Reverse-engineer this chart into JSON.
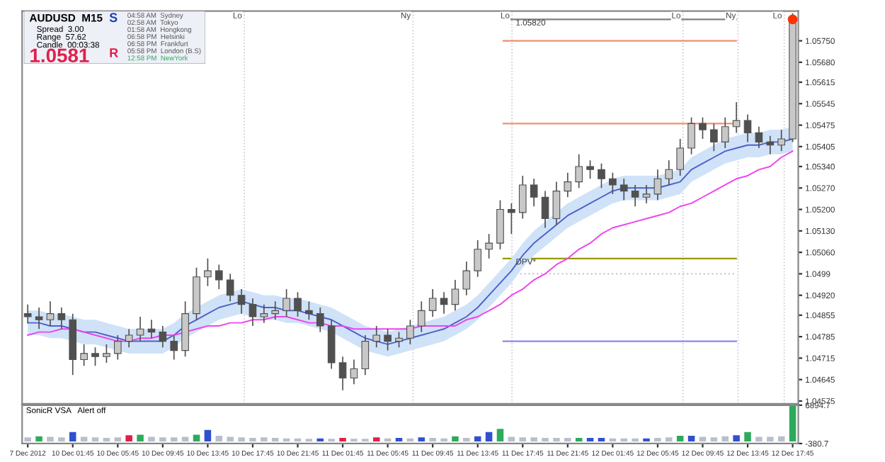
{
  "chart_data": [
    {
      "type": "candlestick",
      "color": "#505050",
      "categories": [
        "7 Dec 2012",
        null,
        null,
        null,
        "10 Dec 01:45",
        null,
        null,
        null,
        "10 Dec 05:45",
        null,
        null,
        null,
        "10 Dec 09:45",
        null,
        null,
        null,
        "10 Dec 13:45",
        null,
        null,
        null,
        "10 Dec 17:45",
        null,
        null,
        null,
        "10 Dec 21:45",
        null,
        null,
        null,
        "11 Dec 01:45",
        null,
        null,
        null,
        "11 Dec 05:45",
        null,
        null,
        null,
        "11 Dec 09:45",
        null,
        null,
        null,
        "11 Dec 13:45",
        null,
        null,
        null,
        "11 Dec 17:45",
        null,
        null,
        null,
        "11 Dec 21:45",
        null,
        null,
        null,
        "12 Dec 01:45",
        null,
        null,
        null,
        "12 Dec 05:45",
        null,
        null,
        null,
        "12 Dec 09:45",
        null,
        null,
        null,
        "12 Dec 13:45",
        null,
        null,
        null,
        "12 Dec 17:45"
      ],
      "ohlc": [
        [
          1.0486,
          1.0489,
          1.0483,
          1.0485
        ],
        [
          1.0485,
          1.0488,
          1.0481,
          1.0484
        ],
        [
          1.0484,
          1.049,
          1.0482,
          1.0486
        ],
        [
          1.0486,
          1.0488,
          1.0481,
          1.0484
        ],
        [
          1.0484,
          1.0486,
          1.0466,
          1.0471
        ],
        [
          1.0471,
          1.0476,
          1.0469,
          1.0473
        ],
        [
          1.0473,
          1.0475,
          1.0469,
          1.0472
        ],
        [
          1.0472,
          1.0476,
          1.047,
          1.0473
        ],
        [
          1.0473,
          1.0479,
          1.0471,
          1.0477
        ],
        [
          1.0477,
          1.0481,
          1.0475,
          1.0479
        ],
        [
          1.0479,
          1.0485,
          1.0477,
          1.0481
        ],
        [
          1.0481,
          1.0484,
          1.0478,
          1.048
        ],
        [
          1.048,
          1.0482,
          1.0475,
          1.0477
        ],
        [
          1.0477,
          1.0479,
          1.0471,
          1.0474
        ],
        [
          1.0474,
          1.049,
          1.0472,
          1.0486
        ],
        [
          1.0486,
          1.0501,
          1.0484,
          1.0498
        ],
        [
          1.0498,
          1.0504,
          1.0495,
          1.05
        ],
        [
          1.05,
          1.0502,
          1.0494,
          1.0497
        ],
        [
          1.0497,
          1.0499,
          1.049,
          1.0492
        ],
        [
          1.0492,
          1.0494,
          1.0486,
          1.0489
        ],
        [
          1.0489,
          1.0491,
          1.0482,
          1.0485
        ],
        [
          1.0485,
          1.0489,
          1.0483,
          1.0486
        ],
        [
          1.0486,
          1.049,
          1.0484,
          1.0487
        ],
        [
          1.0487,
          1.0494,
          1.0485,
          1.0491
        ],
        [
          1.0491,
          1.0493,
          1.0485,
          1.0487
        ],
        [
          1.0487,
          1.049,
          1.0484,
          1.0486
        ],
        [
          1.0486,
          1.0488,
          1.048,
          1.0482
        ],
        [
          1.0482,
          1.0484,
          1.0468,
          1.047
        ],
        [
          1.047,
          1.0472,
          1.0461,
          1.0465
        ],
        [
          1.0465,
          1.0471,
          1.0463,
          1.0468
        ],
        [
          1.0468,
          1.0479,
          1.0466,
          1.0477
        ],
        [
          1.0477,
          1.0482,
          1.0475,
          1.0479
        ],
        [
          1.0479,
          1.0481,
          1.0474,
          1.0477
        ],
        [
          1.0477,
          1.048,
          1.0475,
          1.0478
        ],
        [
          1.0478,
          1.0484,
          1.0476,
          1.0482
        ],
        [
          1.0482,
          1.049,
          1.048,
          1.0487
        ],
        [
          1.0487,
          1.0494,
          1.0485,
          1.0491
        ],
        [
          1.0491,
          1.0493,
          1.0486,
          1.0489
        ],
        [
          1.0489,
          1.0497,
          1.0487,
          1.0494
        ],
        [
          1.0494,
          1.0503,
          1.0492,
          1.05
        ],
        [
          1.05,
          1.051,
          1.0498,
          1.0507
        ],
        [
          1.0507,
          1.0512,
          1.0504,
          1.0509
        ],
        [
          1.0509,
          1.0523,
          1.0507,
          1.052
        ],
        [
          1.052,
          1.0522,
          1.0512,
          1.0519
        ],
        [
          1.0519,
          1.0531,
          1.0517,
          1.0528
        ],
        [
          1.0528,
          1.053,
          1.0521,
          1.0524
        ],
        [
          1.0524,
          1.0526,
          1.0514,
          1.0517
        ],
        [
          1.0517,
          1.0529,
          1.0515,
          1.0526
        ],
        [
          1.0526,
          1.0532,
          1.0524,
          1.0529
        ],
        [
          1.0529,
          1.0538,
          1.0527,
          1.0534
        ],
        [
          1.0534,
          1.0536,
          1.053,
          1.0533
        ],
        [
          1.0533,
          1.0535,
          1.0527,
          1.053
        ],
        [
          1.053,
          1.0532,
          1.0525,
          1.0528
        ],
        [
          1.0528,
          1.053,
          1.0523,
          1.0526
        ],
        [
          1.0526,
          1.0528,
          1.0521,
          1.0524
        ],
        [
          1.0524,
          1.0528,
          1.0522,
          1.0525
        ],
        [
          1.0525,
          1.0533,
          1.0523,
          1.053
        ],
        [
          1.053,
          1.0536,
          1.0528,
          1.0533
        ],
        [
          1.0533,
          1.0543,
          1.0531,
          1.054
        ],
        [
          1.054,
          1.055,
          1.0538,
          1.0548
        ],
        [
          1.0548,
          1.055,
          1.0543,
          1.0546
        ],
        [
          1.0546,
          1.0548,
          1.0539,
          1.0542
        ],
        [
          1.0542,
          1.055,
          1.054,
          1.0547
        ],
        [
          1.0547,
          1.0555,
          1.0545,
          1.0549
        ],
        [
          1.0549,
          1.0551,
          1.0542,
          1.0545
        ],
        [
          1.0545,
          1.0547,
          1.054,
          1.0542
        ],
        [
          1.0542,
          1.0544,
          1.0538,
          1.0541
        ],
        [
          1.0541,
          1.0546,
          1.0539,
          1.0543
        ],
        [
          1.0543,
          1.0584,
          1.0542,
          1.0582
        ]
      ],
      "series": [
        {
          "type": "line",
          "color": "#5060c8",
          "values": [
            1.0483,
            1.0483,
            1.0482,
            1.0482,
            1.0481,
            1.048,
            1.048,
            1.0479,
            1.0478,
            1.0477,
            1.0477,
            1.0477,
            1.0477,
            1.0479,
            1.0482,
            1.0484,
            1.0486,
            1.0488,
            1.0489,
            1.049,
            1.0489,
            1.0488,
            1.0488,
            1.0487,
            1.0487,
            1.0486,
            1.0485,
            1.0484,
            1.0482,
            1.048,
            1.0478,
            1.0477,
            1.0476,
            1.0477,
            1.0478,
            1.0479,
            1.048,
            1.0481,
            1.0483,
            1.0485,
            1.0488,
            1.0492,
            1.0496,
            1.05,
            1.0505,
            1.0509,
            1.0512,
            1.0515,
            1.0518,
            1.052,
            1.0522,
            1.0524,
            1.0526,
            1.0527,
            1.0527,
            1.0527,
            1.0527,
            1.0528,
            1.0529,
            1.0533,
            1.0535,
            1.0537,
            1.0539,
            1.054,
            1.0541,
            1.0541,
            1.0542,
            1.0542,
            1.0543
          ],
          "lower": [
            1.0479,
            1.0479,
            1.0478,
            1.0478,
            1.0477,
            1.0476,
            1.0476,
            1.0475,
            1.0474,
            1.0473,
            1.0473,
            1.0473,
            1.0473,
            1.0475,
            1.0478,
            1.048,
            1.0482,
            1.0484,
            1.0485,
            1.0486,
            1.0485,
            1.0484,
            1.0484,
            1.0483,
            1.0483,
            1.0482,
            1.0481,
            1.048,
            1.0478,
            1.0476,
            1.0474,
            1.0473,
            1.0472,
            1.0473,
            1.0474,
            1.0475,
            1.0476,
            1.0477,
            1.0479,
            1.0481,
            1.0484,
            1.0488,
            1.0492,
            1.0496,
            1.0501,
            1.0505,
            1.0508,
            1.0511,
            1.0514,
            1.0516,
            1.0518,
            1.052,
            1.0522,
            1.0523,
            1.0523,
            1.0523,
            1.0523,
            1.0524,
            1.0525,
            1.0529,
            1.0531,
            1.0533,
            1.0535,
            1.0536,
            1.0537,
            1.0537,
            1.0538,
            1.0538,
            1.0539
          ],
          "upper": [
            1.0487,
            1.0487,
            1.0486,
            1.0486,
            1.0485,
            1.0484,
            1.0484,
            1.0483,
            1.0482,
            1.0481,
            1.0481,
            1.0481,
            1.0481,
            1.0483,
            1.0486,
            1.0488,
            1.049,
            1.0492,
            1.0493,
            1.0494,
            1.0493,
            1.0492,
            1.0492,
            1.0491,
            1.0491,
            1.049,
            1.0489,
            1.0488,
            1.0486,
            1.0484,
            1.0482,
            1.0481,
            1.048,
            1.0481,
            1.0482,
            1.0483,
            1.0484,
            1.0485,
            1.0487,
            1.0489,
            1.0492,
            1.0496,
            1.05,
            1.0504,
            1.0509,
            1.0513,
            1.0516,
            1.0519,
            1.0522,
            1.0524,
            1.0526,
            1.0528,
            1.053,
            1.0531,
            1.0531,
            1.0531,
            1.0531,
            1.0532,
            1.0533,
            1.0537,
            1.0539,
            1.0541,
            1.0543,
            1.0544,
            1.0545,
            1.0545,
            1.0546,
            1.0546,
            1.0547
          ]
        },
        {
          "type": "line",
          "color": "#ee44ee",
          "values": [
            1.0479,
            1.048,
            1.048,
            1.0481,
            1.0481,
            1.048,
            1.0479,
            1.0478,
            1.0477,
            1.0477,
            1.0478,
            1.0478,
            1.0479,
            1.0479,
            1.048,
            1.0481,
            1.0482,
            1.0482,
            1.0483,
            1.0483,
            1.0484,
            1.0484,
            1.0485,
            1.0485,
            1.0484,
            1.0483,
            1.0483,
            1.0482,
            1.0482,
            1.0481,
            1.0481,
            1.0481,
            1.0481,
            1.0481,
            1.0481,
            1.0482,
            1.0482,
            1.0482,
            1.0482,
            1.0484,
            1.0485,
            1.0487,
            1.0489,
            1.0492,
            1.0494,
            1.0497,
            1.0499,
            1.0502,
            1.0504,
            1.0507,
            1.0509,
            1.0512,
            1.0514,
            1.0515,
            1.0516,
            1.0517,
            1.0518,
            1.0519,
            1.0521,
            1.0522,
            1.0524,
            1.0526,
            1.0528,
            1.053,
            1.0531,
            1.0533,
            1.0534,
            1.0537,
            1.0539
          ]
        },
        {
          "type": "scatter",
          "marker": "circle",
          "color": "#ff3300",
          "x": [
            "12 Dec 17:45"
          ],
          "values": [
            1.0582
          ]
        }
      ],
      "ylim": [
        1.04566,
        1.05847
      ],
      "yticks": [
        1.04575,
        1.04645,
        1.04715,
        1.04785,
        1.04855,
        {
          "value": 1.0492,
          "label": "1.04920"
        },
        1.0499,
        {
          "value": 1.0506,
          "label": "1.05060"
        },
        {
          "value": 1.0513,
          "label": "1.05130"
        },
        {
          "value": 1.052,
          "label": "1.05200"
        },
        {
          "value": 1.0527,
          "label": "1.05270"
        },
        {
          "value": 1.0534,
          "label": "1.05340"
        },
        1.05405,
        1.05475,
        1.05545,
        1.05615,
        {
          "value": 1.0568,
          "label": "1.05680"
        },
        {
          "value": 1.0575,
          "label": "1.05750"
        }
      ],
      "tick_labels": "y",
      "annotations": [
        "Lo",
        "Ny",
        "Lo",
        "Lo",
        "Ny",
        "Lo"
      ],
      "ref_lines": [
        {
          "axis": "y",
          "value": 1.0582,
          "label": "1.05820",
          "color": "#808080"
        },
        {
          "axis": "y",
          "value": 1.0575,
          "color": "#f09070"
        },
        {
          "axis": "y",
          "value": 1.0548,
          "color": "#f09070"
        },
        {
          "axis": "y",
          "value": 1.0504,
          "label": "DPV*",
          "color": "#999900"
        },
        {
          "axis": "y",
          "value": 1.0477,
          "color": "#8888ee"
        },
        {
          "axis": "y",
          "value": 1.0499,
          "color": "#c8c8d8",
          "line_style": "dotted"
        }
      ]
    },
    {
      "type": "bar",
      "title": "SonicR VSA   Alert off",
      "categories": [
        "7 Dec 2012",
        null,
        null,
        null,
        "10 Dec 01:45",
        null,
        null,
        null,
        "10 Dec 05:45",
        null,
        null,
        null,
        "10 Dec 09:45",
        null,
        null,
        null,
        "10 Dec 13:45",
        null,
        null,
        null,
        "10 Dec 17:45",
        null,
        null,
        null,
        "10 Dec 21:45",
        null,
        null,
        null,
        "11 Dec 01:45",
        null,
        null,
        null,
        "11 Dec 05:45",
        null,
        null,
        null,
        "11 Dec 09:45",
        null,
        null,
        null,
        "11 Dec 13:45",
        null,
        null,
        null,
        "11 Dec 17:45",
        null,
        null,
        null,
        "11 Dec 21:45",
        null,
        null,
        null,
        "12 Dec 01:45",
        null,
        null,
        null,
        "12 Dec 05:45",
        null,
        null,
        null,
        "12 Dec 09:45",
        null,
        null,
        null,
        "12 Dec 13:45",
        null,
        null,
        null,
        "12 Dec 17:45"
      ],
      "values": [
        800,
        1000,
        900,
        800,
        1800,
        900,
        800,
        700,
        800,
        1200,
        1300,
        900,
        800,
        800,
        900,
        1300,
        2200,
        1100,
        900,
        800,
        700,
        800,
        700,
        600,
        600,
        500,
        600,
        500,
        700,
        500,
        500,
        800,
        600,
        700,
        600,
        800,
        700,
        600,
        1000,
        700,
        1000,
        1800,
        2400,
        900,
        800,
        800,
        700,
        700,
        700,
        700,
        700,
        700,
        600,
        600,
        600,
        600,
        700,
        800,
        1100,
        1100,
        900,
        800,
        1000,
        1200,
        1800,
        900,
        900,
        1000,
        6800
      ],
      "colors": [
        "#b8bfcc",
        "#2eaa5c",
        "#b8bfcc",
        "#b8bfcc",
        "#3050d0",
        "#b8bfcc",
        "#b8bfcc",
        "#b8bfcc",
        "#b8bfcc",
        "#e0204a",
        "#2eaa5c",
        "#b8bfcc",
        "#b8bfcc",
        "#b8bfcc",
        "#b8bfcc",
        "#2eaa5c",
        "#3050d0",
        "#b8bfcc",
        "#b8bfcc",
        "#b8bfcc",
        "#b8bfcc",
        "#b8bfcc",
        "#b8bfcc",
        "#b8bfcc",
        "#b8bfcc",
        "#b8bfcc",
        "#3050d0",
        "#b8bfcc",
        "#e0204a",
        "#b8bfcc",
        "#b8bfcc",
        "#e0204a",
        "#b8bfcc",
        "#3050d0",
        "#b8bfcc",
        "#3050d0",
        "#b8bfcc",
        "#b8bfcc",
        "#2eaa5c",
        "#b8bfcc",
        "#3050d0",
        "#3050d0",
        "#2eaa5c",
        "#b8bfcc",
        "#b8bfcc",
        "#b8bfcc",
        "#b8bfcc",
        "#b8bfcc",
        "#b8bfcc",
        "#2eaa5c",
        "#3050d0",
        "#3050d0",
        "#b8bfcc",
        "#b8bfcc",
        "#b8bfcc",
        "#3050d0",
        "#b8bfcc",
        "#b8bfcc",
        "#2eaa5c",
        "#3050d0",
        "#b8bfcc",
        "#b8bfcc",
        "#b8bfcc",
        "#3050d0",
        "#2eaa5c",
        "#b8bfcc",
        "#b8bfcc",
        "#b8bfcc",
        "#2eaa5c"
      ],
      "ylim": [
        -380.7,
        6894.7
      ],
      "yticks": [
        6894.7,
        -380.7
      ]
    },
    {
      "type": "other",
      "title": "AUDUSD  M15",
      "annotations": [
        "Spread  3.00",
        "Range  57.62",
        "Candle  00:03:38",
        "1.0581",
        "S",
        "R",
        "04:58 AM  Sydney",
        "02:58 AM  Tokyo",
        "01:58 AM  Hongkong",
        "06:58 PM  Helsinki",
        "06:58 PM  Frankfurt",
        "05:58 PM  London (B.S)",
        "12:58 PM  NewYork"
      ]
    }
  ]
}
